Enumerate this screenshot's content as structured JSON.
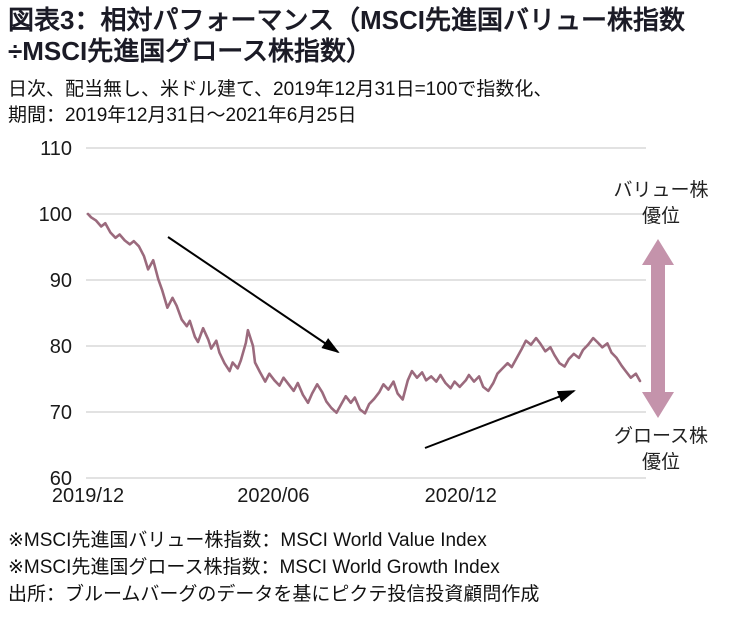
{
  "header": {
    "title_line1": "図表3：相対パフォーマンス（MSCI先進国バリュー株指数",
    "title_line2": "÷MSCI先進国グロース株指数）",
    "subtitle_line1": "日次、配当無し、米ドル建て、2019年12月31日=100で指数化、",
    "subtitle_line2": "期間：2019年12月31日～2021年6月25日"
  },
  "chart_data": {
    "type": "line",
    "title": "相対パフォーマンス（MSCI先進国バリュー株指数÷MSCI先進国グロース株指数）",
    "ylabel": "",
    "xlabel": "",
    "ylim": [
      60,
      110
    ],
    "yticks": [
      110,
      100,
      90,
      80,
      70,
      60
    ],
    "x_range": [
      "2019-12-31",
      "2021-06-25"
    ],
    "xticks": [
      {
        "label": "2019/12",
        "date": "2019-12-31"
      },
      {
        "label": "2020/06",
        "date": "2020-06-30"
      },
      {
        "label": "2020/12",
        "date": "2020-12-31"
      }
    ],
    "grid": "horizontal",
    "line_color": "#9b6a7d",
    "series": [
      {
        "name": "MSCI先進国バリュー株指数÷MSCI先進国グロース株指数（2019/12/31=100）",
        "points": [
          [
            "2019-12-31",
            100.0
          ],
          [
            "2020-01-03",
            99.5
          ],
          [
            "2020-01-08",
            99.0
          ],
          [
            "2020-01-13",
            98.1
          ],
          [
            "2020-01-17",
            98.6
          ],
          [
            "2020-01-22",
            97.2
          ],
          [
            "2020-01-27",
            96.4
          ],
          [
            "2020-01-31",
            96.9
          ],
          [
            "2020-02-05",
            96.0
          ],
          [
            "2020-02-10",
            95.4
          ],
          [
            "2020-02-14",
            95.9
          ],
          [
            "2020-02-19",
            95.1
          ],
          [
            "2020-02-24",
            93.6
          ],
          [
            "2020-02-28",
            91.6
          ],
          [
            "2020-03-04",
            93.0
          ],
          [
            "2020-03-09",
            90.1
          ],
          [
            "2020-03-13",
            88.4
          ],
          [
            "2020-03-18",
            85.8
          ],
          [
            "2020-03-23",
            87.3
          ],
          [
            "2020-03-27",
            86.1
          ],
          [
            "2020-04-01",
            84.0
          ],
          [
            "2020-04-06",
            83.0
          ],
          [
            "2020-04-09",
            83.8
          ],
          [
            "2020-04-14",
            81.4
          ],
          [
            "2020-04-17",
            80.6
          ],
          [
            "2020-04-22",
            82.7
          ],
          [
            "2020-04-27",
            81.0
          ],
          [
            "2020-04-30",
            79.6
          ],
          [
            "2020-05-05",
            80.8
          ],
          [
            "2020-05-08",
            79.0
          ],
          [
            "2020-05-13",
            77.4
          ],
          [
            "2020-05-18",
            76.2
          ],
          [
            "2020-05-21",
            77.5
          ],
          [
            "2020-05-26",
            76.6
          ],
          [
            "2020-05-29",
            77.8
          ],
          [
            "2020-06-03",
            80.5
          ],
          [
            "2020-06-05",
            82.4
          ],
          [
            "2020-06-10",
            80.0
          ],
          [
            "2020-06-12",
            77.5
          ],
          [
            "2020-06-17",
            76.0
          ],
          [
            "2020-06-22",
            74.6
          ],
          [
            "2020-06-26",
            75.8
          ],
          [
            "2020-07-01",
            74.8
          ],
          [
            "2020-07-06",
            74.0
          ],
          [
            "2020-07-10",
            75.2
          ],
          [
            "2020-07-15",
            74.2
          ],
          [
            "2020-07-20",
            73.2
          ],
          [
            "2020-07-24",
            74.4
          ],
          [
            "2020-07-29",
            72.6
          ],
          [
            "2020-08-03",
            71.4
          ],
          [
            "2020-08-07",
            72.8
          ],
          [
            "2020-08-12",
            74.2
          ],
          [
            "2020-08-17",
            73.0
          ],
          [
            "2020-08-21",
            71.6
          ],
          [
            "2020-08-26",
            70.6
          ],
          [
            "2020-08-31",
            69.9
          ],
          [
            "2020-09-04",
            71.0
          ],
          [
            "2020-09-09",
            72.4
          ],
          [
            "2020-09-14",
            71.4
          ],
          [
            "2020-09-18",
            72.2
          ],
          [
            "2020-09-23",
            70.4
          ],
          [
            "2020-09-28",
            69.8
          ],
          [
            "2020-10-02",
            71.2
          ],
          [
            "2020-10-07",
            72.0
          ],
          [
            "2020-10-12",
            73.0
          ],
          [
            "2020-10-16",
            74.2
          ],
          [
            "2020-10-21",
            73.4
          ],
          [
            "2020-10-26",
            74.6
          ],
          [
            "2020-10-30",
            72.8
          ],
          [
            "2020-11-04",
            71.9
          ],
          [
            "2020-11-09",
            74.8
          ],
          [
            "2020-11-13",
            76.2
          ],
          [
            "2020-11-18",
            75.2
          ],
          [
            "2020-11-23",
            76.0
          ],
          [
            "2020-11-27",
            74.8
          ],
          [
            "2020-12-02",
            75.4
          ],
          [
            "2020-12-07",
            74.6
          ],
          [
            "2020-12-11",
            75.6
          ],
          [
            "2020-12-16",
            74.4
          ],
          [
            "2020-12-21",
            73.6
          ],
          [
            "2020-12-25",
            74.6
          ],
          [
            "2020-12-30",
            73.8
          ],
          [
            "2021-01-05",
            74.8
          ],
          [
            "2021-01-08",
            75.6
          ],
          [
            "2021-01-13",
            74.6
          ],
          [
            "2021-01-18",
            75.4
          ],
          [
            "2021-01-22",
            73.8
          ],
          [
            "2021-01-27",
            73.2
          ],
          [
            "2021-02-01",
            74.4
          ],
          [
            "2021-02-05",
            75.8
          ],
          [
            "2021-02-10",
            76.6
          ],
          [
            "2021-02-15",
            77.4
          ],
          [
            "2021-02-19",
            76.8
          ],
          [
            "2021-02-24",
            78.2
          ],
          [
            "2021-03-01",
            79.6
          ],
          [
            "2021-03-05",
            80.8
          ],
          [
            "2021-03-10",
            80.2
          ],
          [
            "2021-03-15",
            81.2
          ],
          [
            "2021-03-19",
            80.4
          ],
          [
            "2021-03-24",
            79.2
          ],
          [
            "2021-03-29",
            79.8
          ],
          [
            "2021-04-02",
            78.6
          ],
          [
            "2021-04-07",
            77.4
          ],
          [
            "2021-04-12",
            76.9
          ],
          [
            "2021-04-16",
            78.0
          ],
          [
            "2021-04-21",
            78.8
          ],
          [
            "2021-04-26",
            78.2
          ],
          [
            "2021-04-30",
            79.4
          ],
          [
            "2021-05-05",
            80.2
          ],
          [
            "2021-05-10",
            81.2
          ],
          [
            "2021-05-14",
            80.6
          ],
          [
            "2021-05-19",
            79.8
          ],
          [
            "2021-05-24",
            80.4
          ],
          [
            "2021-05-28",
            79.0
          ],
          [
            "2021-06-02",
            78.2
          ],
          [
            "2021-06-07",
            77.0
          ],
          [
            "2021-06-11",
            76.2
          ],
          [
            "2021-06-16",
            75.2
          ],
          [
            "2021-06-21",
            75.8
          ],
          [
            "2021-06-25",
            74.7
          ]
        ]
      }
    ]
  },
  "annotations": {
    "value_label": "バリュー株\n優位",
    "growth_label": "グロース株\n優位",
    "arrow_color": "#c493ab"
  },
  "footnotes": [
    "※MSCI先進国バリュー株指数：MSCI World Value Index",
    "※MSCI先進国グロース株指数：MSCI World Growth Index",
    "出所：ブルームバーグのデータを基にピクテ投信投資顧問作成"
  ]
}
